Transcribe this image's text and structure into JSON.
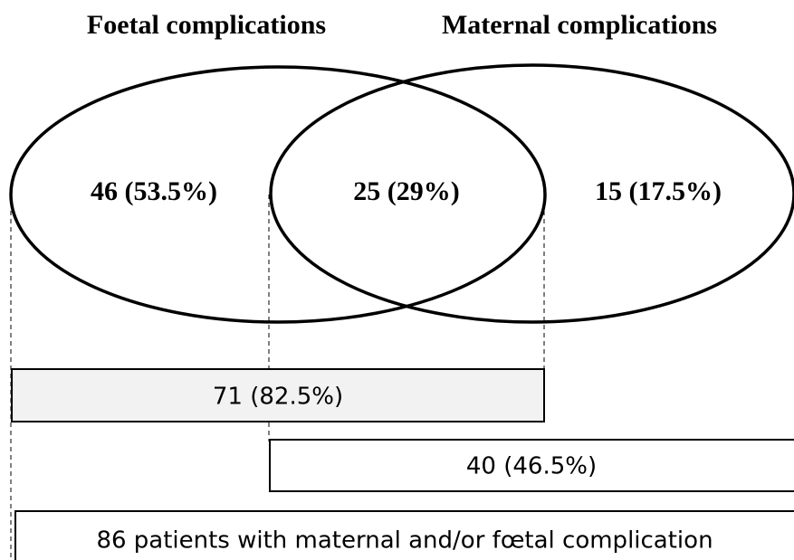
{
  "titles": {
    "left": "Foetal complications",
    "right": "Maternal complications"
  },
  "regions": {
    "left_only": "46 (53.5%)",
    "overlap": "25 (29%)",
    "right_only": "15 (17.5%)"
  },
  "bars": {
    "foetal_total": "71 (82.5%)",
    "maternal_total": "40 (46.5%)",
    "all_patients": "86 patients with maternal and/or fœtal complication"
  }
}
